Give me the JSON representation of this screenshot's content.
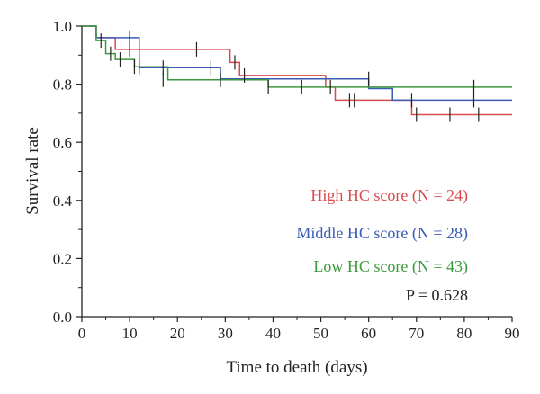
{
  "chart_data": {
    "type": "line",
    "xlabel": "Time to death (days)",
    "ylabel": "Survival rate",
    "xlim": [
      0,
      90
    ],
    "ylim": [
      0.0,
      1.0
    ],
    "x_ticks": [
      0,
      10,
      20,
      30,
      40,
      50,
      60,
      70,
      80,
      90
    ],
    "y_ticks": [
      0.0,
      0.2,
      0.4,
      0.6,
      0.8,
      1.0
    ],
    "y_tick_labels": [
      "0.0",
      "0.2",
      "0.4",
      "0.6",
      "0.8",
      "1.0"
    ],
    "grid": false,
    "legend_position": "center-right",
    "annotation": "P = 0.628",
    "series": [
      {
        "name": "High HC score (N = 24)",
        "color": "#d94a4f",
        "steps": [
          [
            0,
            1.0
          ],
          [
            3,
            0.96
          ],
          [
            7,
            0.92
          ],
          [
            31,
            0.875
          ],
          [
            33,
            0.83
          ],
          [
            51,
            0.79
          ],
          [
            53,
            0.745
          ],
          [
            69,
            0.695
          ],
          [
            90,
            0.695
          ]
        ],
        "censored": [
          [
            10,
            0.92
          ],
          [
            24,
            0.92
          ],
          [
            32,
            0.875
          ],
          [
            34,
            0.83
          ],
          [
            56,
            0.745
          ],
          [
            57,
            0.745
          ],
          [
            70,
            0.695
          ],
          [
            77,
            0.695
          ],
          [
            83,
            0.695
          ]
        ]
      },
      {
        "name": "Middle HC score (N = 28)",
        "color": "#3b5bb5",
        "steps": [
          [
            0,
            1.0
          ],
          [
            3,
            0.96
          ],
          [
            12,
            0.857
          ],
          [
            29,
            0.818
          ],
          [
            60,
            0.785
          ],
          [
            65,
            0.745
          ],
          [
            90,
            0.745
          ]
        ],
        "censored": [
          [
            10,
            0.96
          ],
          [
            17,
            0.857
          ],
          [
            27,
            0.857
          ],
          [
            60,
            0.818
          ],
          [
            69,
            0.745
          ],
          [
            82,
            0.745
          ]
        ]
      },
      {
        "name": "Low HC score (N = 43)",
        "color": "#3c9a3c",
        "steps": [
          [
            0,
            1.0
          ],
          [
            3,
            0.95
          ],
          [
            5,
            0.905
          ],
          [
            7,
            0.885
          ],
          [
            11,
            0.86
          ],
          [
            18,
            0.815
          ],
          [
            39,
            0.79
          ],
          [
            53,
            0.79
          ],
          [
            90,
            0.79
          ]
        ],
        "censored": [
          [
            4,
            0.95
          ],
          [
            6,
            0.905
          ],
          [
            8,
            0.885
          ],
          [
            11,
            0.86
          ],
          [
            12,
            0.86
          ],
          [
            17,
            0.815
          ],
          [
            29,
            0.815
          ],
          [
            39,
            0.79
          ],
          [
            46,
            0.79
          ],
          [
            52,
            0.79
          ],
          [
            82,
            0.79
          ]
        ]
      }
    ]
  }
}
